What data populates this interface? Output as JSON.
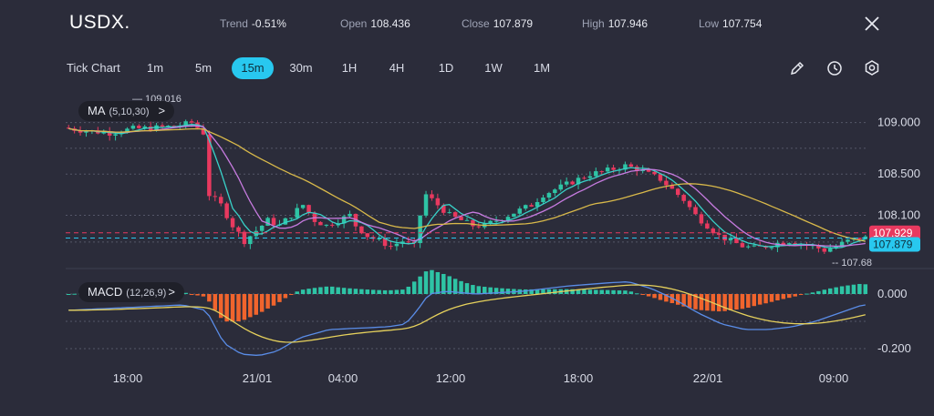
{
  "header": {
    "symbol": "USDX.",
    "trend_label": "Trend",
    "trend_value": "-0.51%",
    "open_label": "Open",
    "open_value": "108.436",
    "close_label": "Close",
    "close_value": "107.879",
    "high_label": "High",
    "high_value": "107.946",
    "low_label": "Low",
    "low_value": "107.754"
  },
  "toolbar": {
    "chart_type": "Tick Chart",
    "timeframes": [
      "1m",
      "5m",
      "15m",
      "30m",
      "1H",
      "4H",
      "1D",
      "1W",
      "1M"
    ],
    "active_timeframe": "15m"
  },
  "indicators": {
    "ma_label": "MA",
    "ma_params": "(5,10,30)",
    "ma_arrow": ">",
    "macd_label": "MACD",
    "macd_params": "(12,26,9)",
    "macd_arrow": ">"
  },
  "colors": {
    "bg": "#2b2c3a",
    "up": "#2ec4a5",
    "down": "#e8395f",
    "accent": "#28c8ef",
    "ma5": "#38d1c8",
    "ma10": "#c77be0",
    "ma30": "#d9b94a",
    "macd_pos": "#2ec4a5",
    "macd_neg": "#f0642d",
    "dif": "#5a8de8",
    "dea": "#e6d15c"
  },
  "chart_data": {
    "type": "candlestick",
    "price_axis": {
      "ticks": [
        109.0,
        108.5,
        108.1
      ],
      "tick_labels": [
        "109.000",
        "108.500",
        "108.100"
      ],
      "range": [
        107.6,
        109.2
      ]
    },
    "current_close_label": "107.879",
    "high_marker_label": "107.929",
    "chart_max_label": "109.016",
    "chart_min_label": "107.68",
    "x_tick_labels": [
      "18:00",
      "21/01",
      "04:00",
      "12:00",
      "18:00",
      "22/01",
      "09:00"
    ],
    "macd_axis": {
      "ticks": [
        0.0,
        -0.2
      ],
      "tick_labels": [
        "0.000",
        "-0.200"
      ],
      "range": [
        -0.25,
        0.07
      ]
    },
    "price_path": [
      [
        0,
        108.95
      ],
      [
        4,
        108.92
      ],
      [
        8,
        108.9
      ],
      [
        12,
        108.94
      ],
      [
        16,
        108.95
      ],
      [
        20,
        108.97
      ],
      [
        22,
        109.0
      ],
      [
        24,
        108.9
      ],
      [
        25,
        108.3
      ],
      [
        27,
        108.2
      ],
      [
        29,
        108.0
      ],
      [
        31,
        107.85
      ],
      [
        33,
        107.95
      ],
      [
        35,
        108.05
      ],
      [
        37,
        108.0
      ],
      [
        39,
        108.1
      ],
      [
        41,
        108.2
      ],
      [
        43,
        108.05
      ],
      [
        45,
        108.0
      ],
      [
        47,
        108.05
      ],
      [
        49,
        108.1
      ],
      [
        50,
        108.0
      ],
      [
        52,
        107.9
      ],
      [
        54,
        107.85
      ],
      [
        56,
        107.8
      ],
      [
        58,
        107.85
      ],
      [
        60,
        107.8
      ],
      [
        61,
        108.1
      ],
      [
        62,
        108.3
      ],
      [
        64,
        108.2
      ],
      [
        66,
        108.1
      ],
      [
        68,
        108.05
      ],
      [
        70,
        108.0
      ],
      [
        72,
        108.0
      ],
      [
        74,
        108.05
      ],
      [
        76,
        108.1
      ],
      [
        78,
        108.15
      ],
      [
        80,
        108.2
      ],
      [
        82,
        108.3
      ],
      [
        84,
        108.35
      ],
      [
        86,
        108.4
      ],
      [
        88,
        108.45
      ],
      [
        90,
        108.5
      ],
      [
        92,
        108.52
      ],
      [
        94,
        108.55
      ],
      [
        96,
        108.58
      ],
      [
        98,
        108.55
      ],
      [
        100,
        108.5
      ],
      [
        102,
        108.45
      ],
      [
        104,
        108.35
      ],
      [
        106,
        108.25
      ],
      [
        108,
        108.1
      ],
      [
        110,
        108.0
      ],
      [
        112,
        107.9
      ],
      [
        114,
        107.85
      ],
      [
        116,
        107.8
      ],
      [
        118,
        107.78
      ],
      [
        120,
        107.8
      ],
      [
        122,
        107.83
      ],
      [
        124,
        107.85
      ],
      [
        126,
        107.82
      ],
      [
        128,
        107.8
      ],
      [
        130,
        107.76
      ],
      [
        132,
        107.8
      ],
      [
        134,
        107.85
      ],
      [
        136,
        107.88
      ]
    ],
    "macd_path": [
      [
        0,
        -0.06
      ],
      [
        20,
        -0.04
      ],
      [
        24,
        -0.06
      ],
      [
        27,
        -0.18
      ],
      [
        30,
        -0.22
      ],
      [
        33,
        -0.225
      ],
      [
        36,
        -0.21
      ],
      [
        40,
        -0.16
      ],
      [
        45,
        -0.13
      ],
      [
        50,
        -0.125
      ],
      [
        55,
        -0.12
      ],
      [
        58,
        -0.11
      ],
      [
        60,
        -0.06
      ],
      [
        62,
        0.0
      ],
      [
        65,
        0.01
      ],
      [
        70,
        0.0
      ],
      [
        78,
        0.01
      ],
      [
        86,
        0.03
      ],
      [
        92,
        0.04
      ],
      [
        96,
        0.045
      ],
      [
        100,
        0.02
      ],
      [
        104,
        -0.02
      ],
      [
        108,
        -0.07
      ],
      [
        112,
        -0.11
      ],
      [
        116,
        -0.13
      ],
      [
        120,
        -0.13
      ],
      [
        124,
        -0.12
      ],
      [
        128,
        -0.1
      ],
      [
        132,
        -0.07
      ],
      [
        136,
        -0.04
      ]
    ]
  }
}
